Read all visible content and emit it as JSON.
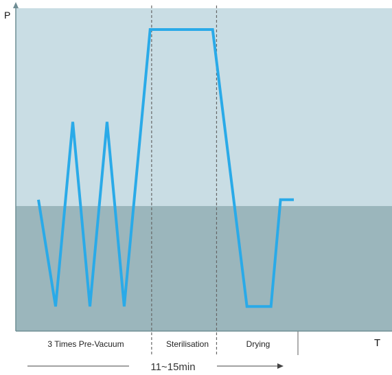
{
  "chart_data": {
    "type": "line",
    "title": "",
    "xlabel": "T",
    "ylabel": "P",
    "phases": [
      "3 Times Pre-Vacuum",
      "Sterilisation",
      "Drying"
    ],
    "duration_label": "11~15min",
    "series": [
      {
        "values": [
          [
            0.5,
            0.41
          ],
          [
            0.95,
            0.04
          ],
          [
            1.4,
            0.68
          ],
          [
            1.85,
            0.04
          ],
          [
            2.3,
            0.68
          ],
          [
            2.75,
            0.04
          ],
          [
            3.43,
            1.0
          ],
          [
            5.07,
            1.0
          ],
          [
            5.97,
            0.04
          ],
          [
            6.6,
            0.04
          ],
          [
            6.85,
            0.41
          ],
          [
            7.2,
            0.41
          ]
        ]
      }
    ],
    "xlim": [
      0,
      9.5
    ],
    "ylim": [
      0,
      1.1
    ],
    "phase_boundaries": [
      3.43,
      5.07,
      7.2
    ],
    "colors": {
      "line": "#2aaae8",
      "upper_band": "#c9dde4",
      "lower_band": "#9bb6bc",
      "axis": "#6f8d94"
    }
  }
}
